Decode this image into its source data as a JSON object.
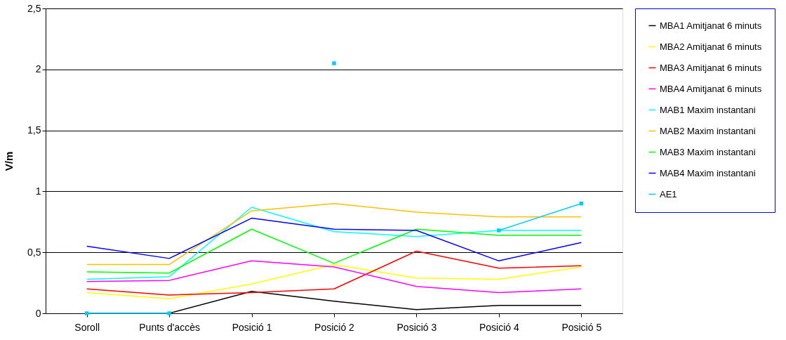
{
  "chart_data": {
    "type": "line",
    "ylabel": "V/m",
    "categories": [
      "Soroll",
      "Punts d'accès",
      "Posició 1",
      "Posició 2",
      "Posició 3",
      "Posició 4",
      "Posició 5"
    ],
    "ylim": [
      0,
      2.5
    ],
    "yticks": [
      0,
      {
        "value": 0.5,
        "label": "0,5"
      },
      1,
      {
        "value": 1.5,
        "label": "1,5"
      },
      2,
      {
        "value": 2.5,
        "label": "2,5"
      }
    ],
    "grid": "y",
    "legend": "right",
    "marker": "none",
    "series": [
      {
        "name": "MBA1 Amitjanat 6 minuts",
        "color": "#000000",
        "values": [
          0,
          0,
          0.18,
          0.1,
          0.03,
          0.065,
          0.065
        ]
      },
      {
        "name": "MBA2 Amitjanat 6 minuts",
        "color": "#ffff00",
        "values": [
          0.17,
          0.12,
          0.24,
          0.4,
          0.29,
          0.28,
          0.38
        ]
      },
      {
        "name": "MBA3 Amitjanat 6 minuts",
        "color": "#ff0000",
        "values": [
          0.2,
          0.15,
          0.17,
          0.2,
          0.51,
          0.37,
          0.39
        ]
      },
      {
        "name": "MBA4 Amitjanat 6 minuts",
        "color": "#ff00ff",
        "values": [
          0.26,
          0.27,
          0.43,
          0.38,
          0.22,
          0.17,
          0.2
        ]
      },
      {
        "name": "MAB1 Maxim instantani",
        "color": "#00ffff",
        "values": [
          0.28,
          0.3,
          0.87,
          0.67,
          0.63,
          0.68,
          0.68
        ]
      },
      {
        "name": "MAB2 Maxim instantani",
        "color": "#ffc000",
        "values": [
          0.4,
          0.4,
          0.84,
          0.9,
          0.83,
          0.79,
          0.79
        ]
      },
      {
        "name": "MAB3 Maxim instantani",
        "color": "#00ff00",
        "values": [
          0.34,
          0.33,
          0.69,
          0.41,
          0.69,
          0.64,
          0.64
        ]
      },
      {
        "name": "MAB4 Maxim instantani",
        "color": "#0000ff",
        "values": [
          0.55,
          0.45,
          0.78,
          0.69,
          0.68,
          0.43,
          0.58
        ]
      },
      {
        "name": "AE1",
        "color": "#00ccff",
        "marker": "square",
        "values": [
          0,
          0,
          null,
          2.05,
          null,
          0.68,
          0.9
        ]
      }
    ]
  }
}
